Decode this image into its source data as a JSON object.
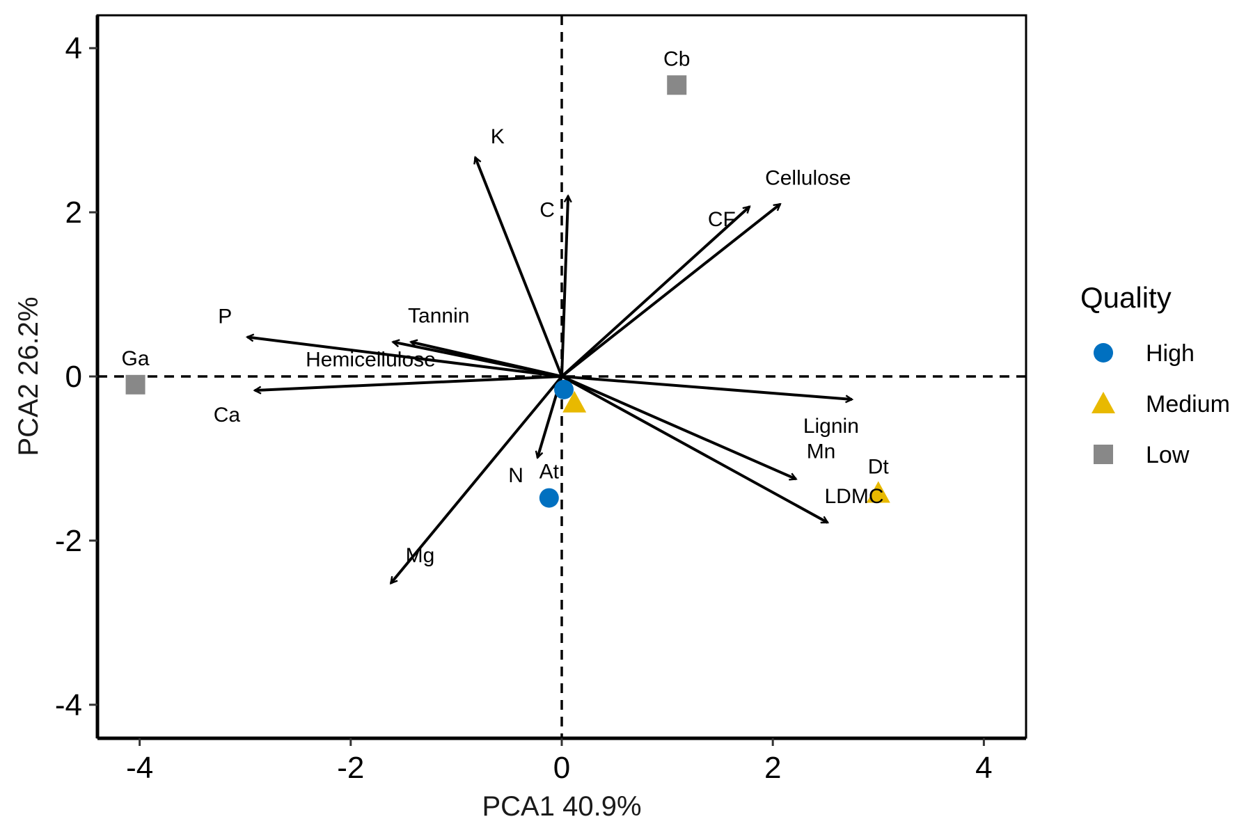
{
  "chart_data": {
    "type": "scatter",
    "xlabel": "PCA1 40.9%",
    "ylabel": "PCA2 26.2%",
    "xlim": [
      -4.4,
      4.4
    ],
    "ylim": [
      -4.4,
      4.4
    ],
    "xticks": [
      -4,
      -2,
      0,
      2,
      4
    ],
    "yticks": [
      -4,
      -2,
      0,
      2,
      4
    ],
    "reference_lines": {
      "x": 0,
      "y": 0,
      "style": "dashed"
    },
    "legend": {
      "title": "Quality",
      "placement": "right",
      "entries": [
        {
          "name": "High",
          "shape": "circle",
          "color": "#0070C0"
        },
        {
          "name": "Medium",
          "shape": "triangle",
          "color": "#E8B900"
        },
        {
          "name": "Low",
          "shape": "square",
          "color": "#888888"
        }
      ]
    },
    "points": [
      {
        "label": "Cb",
        "x": 1.09,
        "y": 3.55,
        "group": "Low"
      },
      {
        "label": "Ga",
        "x": -4.04,
        "y": -0.1,
        "group": "Low"
      },
      {
        "label": "At",
        "x": -0.12,
        "y": -1.48,
        "group": "High"
      },
      {
        "label": "",
        "x": 0.02,
        "y": -0.16,
        "group": "High"
      },
      {
        "label": "",
        "x": 0.12,
        "y": -0.32,
        "group": "Medium"
      },
      {
        "label": "Dt",
        "x": 3.0,
        "y": -1.42,
        "group": "Medium"
      }
    ],
    "vectors": [
      {
        "label": "K",
        "x": -0.82,
        "y": 2.67
      },
      {
        "label": "C",
        "x": 0.06,
        "y": 2.2
      },
      {
        "label": "Cellulose",
        "x": 2.07,
        "y": 2.1
      },
      {
        "label": "CF",
        "x": 1.78,
        "y": 2.07
      },
      {
        "label": "P",
        "x": -2.98,
        "y": 0.48
      },
      {
        "label": "Tannin",
        "x": -1.43,
        "y": 0.42
      },
      {
        "label": "Hemicellulose",
        "x": -1.6,
        "y": 0.42
      },
      {
        "label": "Ca",
        "x": -2.91,
        "y": -0.17
      },
      {
        "label": "Lignin",
        "x": 2.75,
        "y": -0.28
      },
      {
        "label": "Mn",
        "x": 2.22,
        "y": -1.25
      },
      {
        "label": "LDMC",
        "x": 2.52,
        "y": -1.78
      },
      {
        "label": "N",
        "x": -0.23,
        "y": -0.99
      },
      {
        "label": "Mg",
        "x": -1.62,
        "y": -2.52
      }
    ]
  }
}
